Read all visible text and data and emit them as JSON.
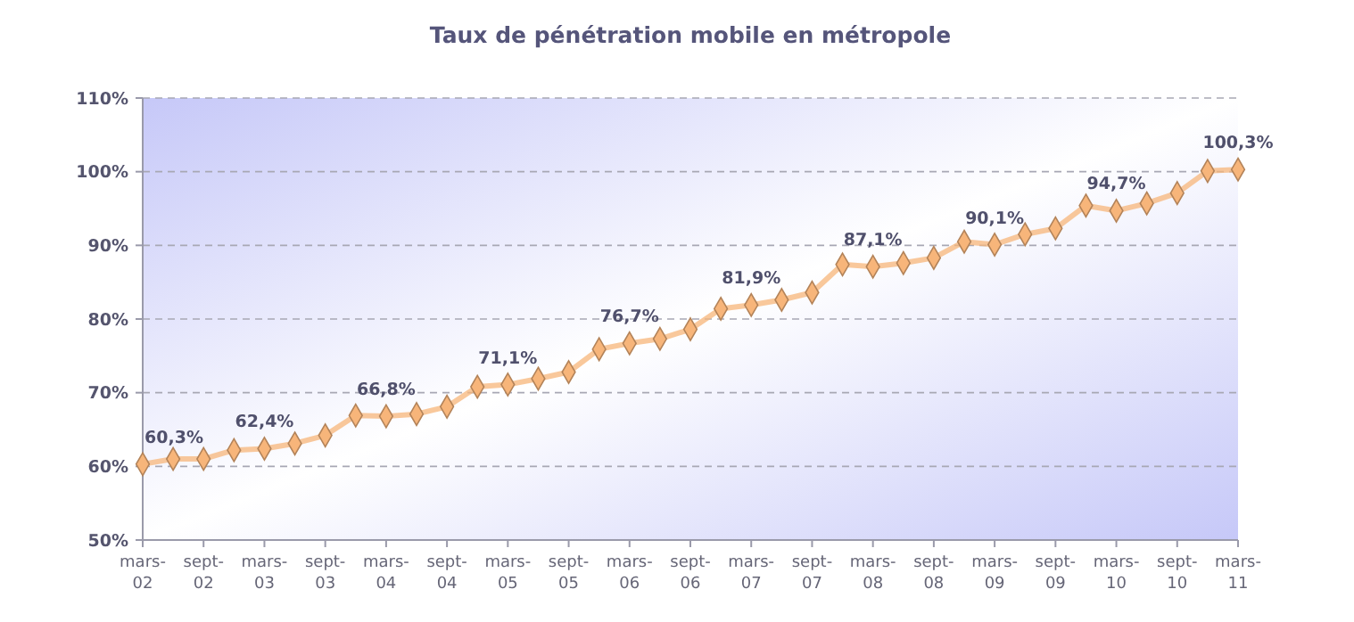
{
  "chart_data": {
    "type": "line",
    "title": "Taux de pénétration mobile en métropole",
    "categories": [
      "mars-02",
      null,
      "sept-02",
      null,
      "mars-03",
      null,
      "sept-03",
      null,
      "mars-04",
      null,
      "sept-04",
      null,
      "mars-05",
      null,
      "sept-05",
      null,
      "mars-06",
      null,
      "sept-06",
      null,
      "mars-07",
      null,
      "sept-07",
      null,
      "mars-08",
      null,
      "sept-08",
      null,
      "mars-09",
      null,
      "sept-09",
      null,
      "mars-10",
      null,
      "sept-10",
      null,
      "mars-11"
    ],
    "series": [
      {
        "color": "#f7b57a",
        "values": [
          60.3,
          61.0,
          61.0,
          62.2,
          62.4,
          63.1,
          64.2,
          66.9,
          66.8,
          67.1,
          68.1,
          70.8,
          71.1,
          71.9,
          72.8,
          75.9,
          76.7,
          77.3,
          78.6,
          81.4,
          81.9,
          82.6,
          83.6,
          87.4,
          87.1,
          87.6,
          88.3,
          90.5,
          90.1,
          91.5,
          92.3,
          95.4,
          94.7,
          95.7,
          97.1,
          100.1,
          100.3
        ],
        "value_labels": [
          "60,3%",
          null,
          null,
          null,
          "62,4%",
          null,
          null,
          null,
          "66,8%",
          null,
          null,
          null,
          "71,1%",
          null,
          null,
          null,
          "76,7%",
          null,
          null,
          null,
          "81,9%",
          null,
          null,
          null,
          "87,1%",
          null,
          null,
          null,
          "90,1%",
          null,
          null,
          null,
          "94,7%",
          null,
          null,
          null,
          "100,3%"
        ]
      }
    ],
    "ylim": [
      50,
      110
    ],
    "yticks": [
      {
        "value": 50,
        "label": "50%"
      },
      {
        "value": 60,
        "label": "60%"
      },
      {
        "value": 70,
        "label": "70%"
      },
      {
        "value": 80,
        "label": "80%"
      },
      {
        "value": 90,
        "label": "90%"
      },
      {
        "value": 100,
        "label": "100%"
      },
      {
        "value": 110,
        "label": "110%"
      }
    ],
    "grid": "y",
    "marker": "diamond",
    "line_style": "solid"
  }
}
